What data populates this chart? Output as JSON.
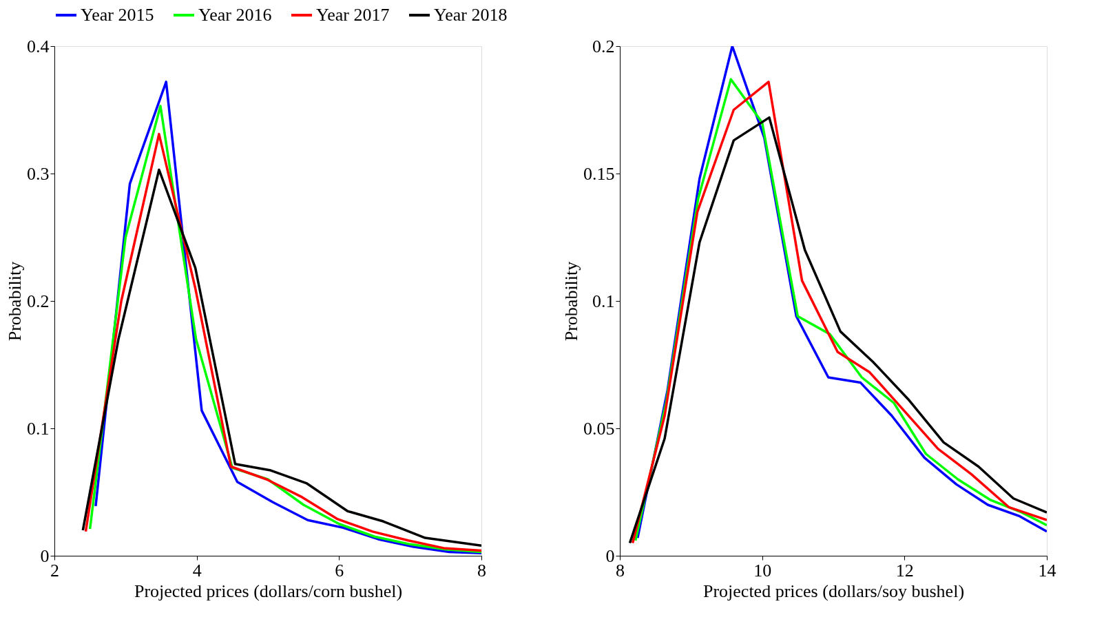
{
  "chart_data": [
    {
      "type": "line",
      "xlabel": "Projected prices (dollars/corn bushel)",
      "ylabel": "Probability",
      "xlim": [
        2,
        8
      ],
      "xticks": [
        2,
        4,
        6,
        8
      ],
      "ylim": [
        0,
        0.4
      ],
      "yticks": [
        0,
        0.1,
        0.2,
        0.3,
        0.4
      ],
      "grid": false,
      "legend": "top",
      "marker": "none",
      "line_style": "solid",
      "series": [
        {
          "name": "Year 2015",
          "color": "#0000ff",
          "x": [
            2.58,
            3.06,
            3.57,
            4.07,
            4.57,
            5.07,
            5.56,
            6.06,
            6.55,
            7.05,
            7.55,
            8.0
          ],
          "values": [
            0.039,
            0.292,
            0.372,
            0.114,
            0.058,
            0.042,
            0.028,
            0.022,
            0.013,
            0.007,
            0.003,
            0.002
          ]
        },
        {
          "name": "Year 2016",
          "color": "#00ff00",
          "x": [
            2.5,
            3.0,
            3.49,
            3.99,
            4.5,
            5.0,
            5.5,
            6.0,
            6.5,
            7.0,
            7.5,
            8.0
          ],
          "values": [
            0.021,
            0.25,
            0.353,
            0.17,
            0.069,
            0.06,
            0.04,
            0.025,
            0.015,
            0.009,
            0.005,
            0.003
          ]
        },
        {
          "name": "Year 2017",
          "color": "#ff0000",
          "x": [
            2.44,
            2.94,
            3.47,
            3.98,
            4.48,
            4.98,
            5.48,
            5.97,
            6.47,
            6.97,
            7.47,
            8.0
          ],
          "values": [
            0.019,
            0.2,
            0.331,
            0.21,
            0.07,
            0.06,
            0.046,
            0.029,
            0.019,
            0.012,
            0.006,
            0.004
          ]
        },
        {
          "name": "Year 2018",
          "color": "#000000",
          "x": [
            2.4,
            2.9,
            3.47,
            3.98,
            4.54,
            5.04,
            5.54,
            6.12,
            6.62,
            7.21,
            8.0
          ],
          "values": [
            0.02,
            0.17,
            0.303,
            0.226,
            0.072,
            0.067,
            0.057,
            0.035,
            0.027,
            0.014,
            0.008
          ]
        }
      ]
    },
    {
      "type": "line",
      "xlabel": "Projected prices (dollars/soy bushel)",
      "ylabel": "Probability",
      "xlim": [
        8,
        14
      ],
      "xticks": [
        8,
        10,
        12,
        14
      ],
      "ylim": [
        0,
        0.2
      ],
      "yticks": [
        0,
        0.05,
        0.1,
        0.15,
        0.2
      ],
      "grid": false,
      "legend": "top",
      "marker": "none",
      "line_style": "solid",
      "series": [
        {
          "name": "Year 2015",
          "color": "#0000ff",
          "x": [
            8.25,
            8.67,
            9.12,
            9.58,
            10.03,
            10.48,
            10.93,
            11.38,
            11.82,
            12.28,
            12.73,
            13.17,
            13.62,
            14.0
          ],
          "values": [
            0.007,
            0.065,
            0.148,
            0.2,
            0.164,
            0.094,
            0.07,
            0.068,
            0.055,
            0.0385,
            0.028,
            0.02,
            0.0155,
            0.0095
          ]
        },
        {
          "name": "Year 2016",
          "color": "#00ff00",
          "x": [
            8.22,
            8.65,
            9.1,
            9.56,
            10.0,
            10.5,
            10.95,
            11.4,
            11.85,
            12.3,
            12.75,
            13.2,
            13.65,
            14.0
          ],
          "values": [
            0.006,
            0.06,
            0.14,
            0.187,
            0.17,
            0.094,
            0.087,
            0.07,
            0.06,
            0.04,
            0.03,
            0.022,
            0.017,
            0.012
          ]
        },
        {
          "name": "Year 2017",
          "color": "#ff0000",
          "x": [
            8.18,
            8.63,
            9.09,
            9.6,
            10.09,
            10.56,
            11.06,
            11.51,
            11.96,
            12.47,
            12.94,
            13.47,
            14.0
          ],
          "values": [
            0.005,
            0.055,
            0.135,
            0.175,
            0.186,
            0.108,
            0.08,
            0.072,
            0.058,
            0.042,
            0.032,
            0.019,
            0.014
          ]
        },
        {
          "name": "Year 2018",
          "color": "#000000",
          "x": [
            8.14,
            8.63,
            9.12,
            9.6,
            10.1,
            10.6,
            11.1,
            11.56,
            12.05,
            12.55,
            13.04,
            13.53,
            14.0
          ],
          "values": [
            0.005,
            0.046,
            0.123,
            0.163,
            0.172,
            0.12,
            0.088,
            0.076,
            0.0615,
            0.0445,
            0.035,
            0.0225,
            0.017
          ]
        }
      ]
    }
  ]
}
